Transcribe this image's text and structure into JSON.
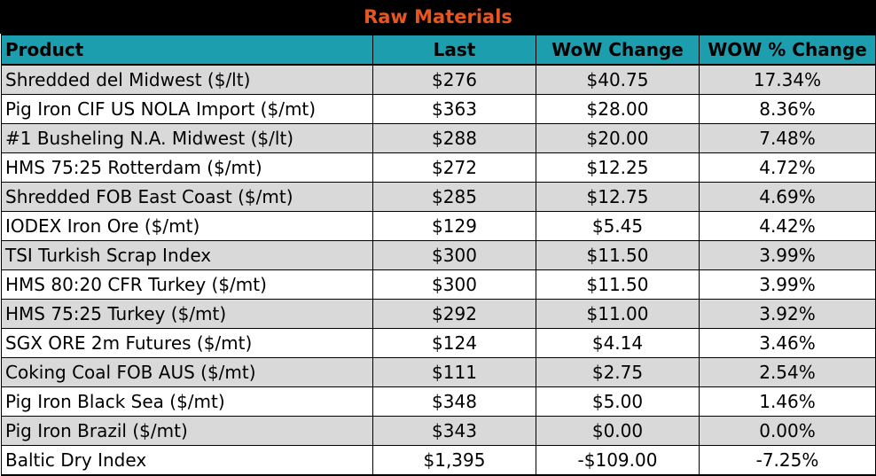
{
  "title": "Raw Materials",
  "colors": {
    "title_bg": "#000000",
    "title_text": "#E8561E",
    "header_bg": "#1C9EAE",
    "row_shaded": "#D9D9D9",
    "row_plain": "#FFFFFF",
    "grid": "#000000"
  },
  "headers": {
    "product": "Product",
    "last": "Last",
    "wow": "WoW Change",
    "pct": "WOW % Change"
  },
  "rows": [
    {
      "product": "Shredded del  Midwest ($/lt)",
      "last": "$276",
      "wow": "$40.75",
      "pct": "17.34%",
      "shaded": true
    },
    {
      "product": "Pig Iron CIF US NOLA Import ($/mt)",
      "last": "$363",
      "wow": "$28.00",
      "pct": "8.36%",
      "shaded": false
    },
    {
      "product": "#1 Busheling N.A. Midwest ($/lt)",
      "last": "$288",
      "wow": "$20.00",
      "pct": "7.48%",
      "shaded": true
    },
    {
      "product": "HMS 75:25 Rotterdam ($/mt)",
      "last": "$272",
      "wow": "$12.25",
      "pct": "4.72%",
      "shaded": false
    },
    {
      "product": "Shredded FOB East Coast ($/mt)",
      "last": "$285",
      "wow": "$12.75",
      "pct": "4.69%",
      "shaded": true
    },
    {
      "product": "IODEX  Iron Ore ($/mt)",
      "last": "$129",
      "wow": "$5.45",
      "pct": "4.42%",
      "shaded": false
    },
    {
      "product": "TSI Turkish Scrap Index",
      "last": "$300",
      "wow": "$11.50",
      "pct": "3.99%",
      "shaded": true
    },
    {
      "product": "HMS 80:20 CFR Turkey ($/mt)",
      "last": "$300",
      "wow": "$11.50",
      "pct": "3.99%",
      "shaded": false
    },
    {
      "product": "HMS 75:25 Turkey ($/mt)",
      "last": "$292",
      "wow": "$11.00",
      "pct": "3.92%",
      "shaded": true
    },
    {
      "product": "SGX ORE 2m Futures ($/mt)",
      "last": "$124",
      "wow": "$4.14",
      "pct": "3.46%",
      "shaded": false
    },
    {
      "product": "Coking Coal FOB AUS ($/mt)",
      "last": "$111",
      "wow": "$2.75",
      "pct": "2.54%",
      "shaded": true
    },
    {
      "product": "Pig Iron Black Sea ($/mt)",
      "last": "$348",
      "wow": "$5.00",
      "pct": "1.46%",
      "shaded": false
    },
    {
      "product": "Pig Iron Brazil ($/mt)",
      "last": "$343",
      "wow": "$0.00",
      "pct": "0.00%",
      "shaded": true
    },
    {
      "product": "Baltic Dry Index",
      "last": "$1,395",
      "wow": "-$109.00",
      "pct": "-7.25%",
      "shaded": false
    }
  ]
}
